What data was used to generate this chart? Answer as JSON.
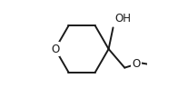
{
  "background_color": "#ffffff",
  "line_color": "#1a1a1a",
  "line_width": 1.4,
  "font_size_label": 8.5,
  "O_label": "O",
  "OH_label": "OH",
  "O2_label": "O",
  "xlim": [
    -0.55,
    0.75
  ],
  "ylim": [
    -0.52,
    0.58
  ]
}
